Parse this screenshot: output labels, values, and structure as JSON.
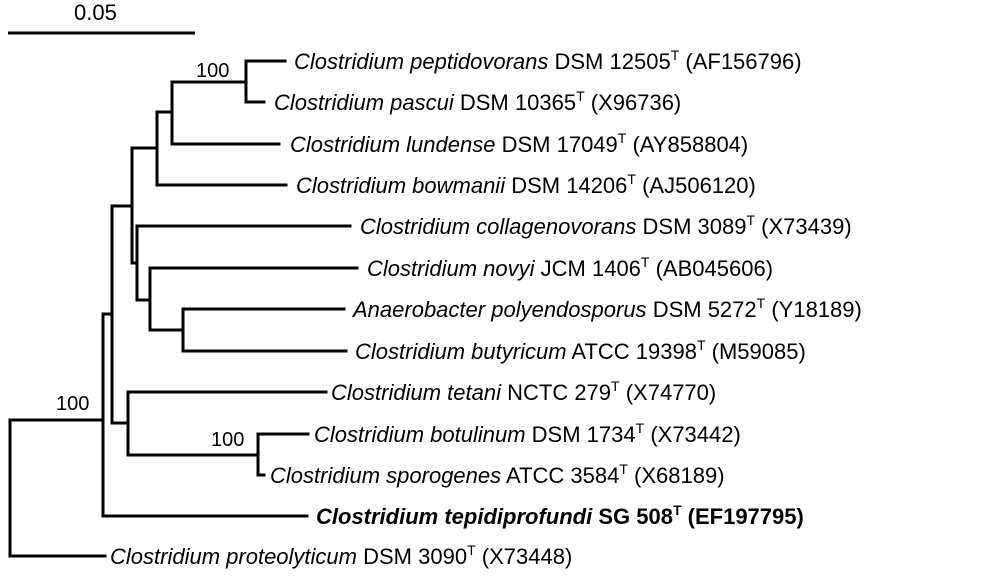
{
  "scale_bar": {
    "label": "0.05"
  },
  "taxa": [
    {
      "genus": "Clostridium",
      "species": "peptidovorans",
      "strain": "DSM 12505",
      "type": "T",
      "accession": "(AF156796)"
    },
    {
      "genus": "Clostridium",
      "species": "pascui",
      "strain": "DSM 10365",
      "type": "T",
      "accession": "(X96736)"
    },
    {
      "genus": "Clostridium",
      "species": "lundense",
      "strain": "DSM 17049",
      "type": "T",
      "accession": "(AY858804)"
    },
    {
      "genus": "Clostridium",
      "species": "bowmanii",
      "strain": "DSM 14206",
      "type": "T",
      "accession": "(AJ506120)"
    },
    {
      "genus": "Clostridium",
      "species": "collagenovorans",
      "strain": "DSM 3089",
      "type": "T",
      "accession": "(X73439)"
    },
    {
      "genus": "Clostridium",
      "species": "novyi",
      "strain": "JCM 1406",
      "type": "T",
      "accession": "(AB045606)"
    },
    {
      "genus": "Anaerobacter",
      "species": "polyendosporus",
      "strain": "DSM 5272",
      "type": "T",
      "accession": "(Y18189)"
    },
    {
      "genus": "Clostridium",
      "species": "butyricum",
      "strain": "ATCC 19398",
      "type": "T",
      "accession": "(M59085)"
    },
    {
      "genus": "Clostridium",
      "species": "tetani",
      "strain": "NCTC 279",
      "type": "T",
      "accession": "(X74770)"
    },
    {
      "genus": "Clostridium",
      "species": "botulinum",
      "strain": "DSM 1734",
      "type": "T",
      "accession": "(X73442)"
    },
    {
      "genus": "Clostridium",
      "species": "sporogenes",
      "strain": "ATCC 3584",
      "type": "T",
      "accession": "(X68189)"
    },
    {
      "genus": "Clostridium",
      "species": "tepidiprofundi",
      "strain": "SG 508",
      "type": "T",
      "accession": "(EF197795)",
      "bold": true
    },
    {
      "genus": "Clostridium",
      "species": "proteolyticum",
      "strain": "DSM 3090",
      "type": "T",
      "accession": "(X73448)"
    }
  ],
  "bootstraps": [
    {
      "value": "100",
      "node": "peptidovorans-pascui"
    },
    {
      "value": "100",
      "node": "ingroup"
    },
    {
      "value": "100",
      "node": "botulinum-sporogenes"
    }
  ]
}
